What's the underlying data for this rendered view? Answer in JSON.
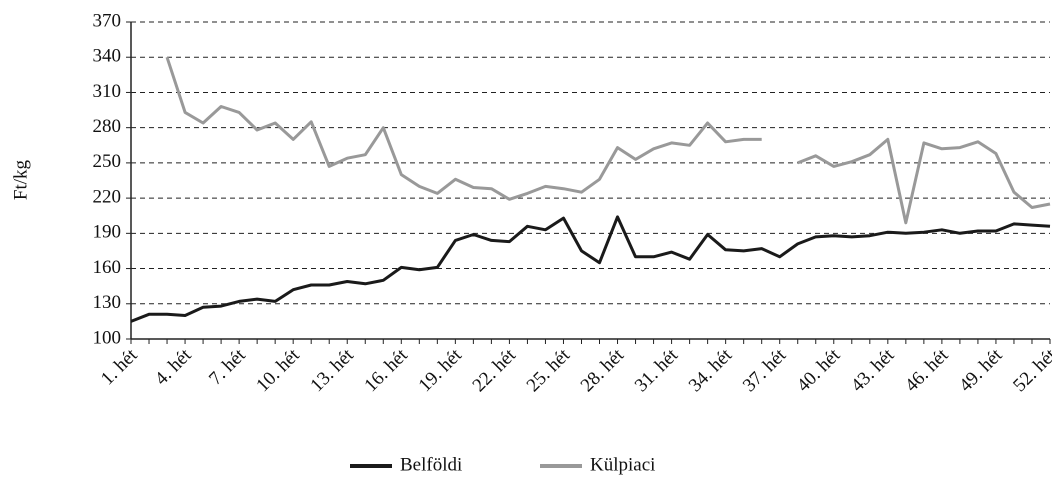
{
  "chart_data": {
    "type": "line",
    "ylabel": "Ft/kg",
    "categories": [
      "1. hét",
      null,
      null,
      "4. hét",
      null,
      null,
      "7. hét",
      null,
      null,
      "10. hét",
      null,
      null,
      "13. hét",
      null,
      null,
      "16. hét",
      null,
      null,
      "19. hét",
      null,
      null,
      "22. hét",
      null,
      null,
      "25. hét",
      null,
      null,
      "28. hét",
      null,
      null,
      "31. hét",
      null,
      null,
      "34. hét",
      null,
      null,
      "37. hét",
      null,
      null,
      "40. hét",
      null,
      null,
      "43. hét",
      null,
      null,
      "46. hét",
      null,
      null,
      "49. hét",
      null,
      null,
      "52. hét"
    ],
    "series": [
      {
        "name": "Belföldi",
        "color": "#1a1a1a",
        "values": [
          115,
          121,
          121,
          120,
          127,
          128,
          132,
          134,
          132,
          142,
          146,
          146,
          149,
          147,
          150,
          161,
          159,
          161,
          184,
          189,
          184,
          183,
          196,
          193,
          203,
          175,
          165,
          204,
          170,
          170,
          174,
          168,
          189,
          176,
          175,
          177,
          170,
          181,
          187,
          188,
          187,
          188,
          191,
          190,
          191,
          193,
          190,
          192,
          192,
          198,
          197,
          196
        ]
      },
      {
        "name": "Külpiaci",
        "color": "#999999",
        "values": [
          null,
          null,
          340,
          293,
          284,
          298,
          293,
          278,
          284,
          270,
          285,
          247,
          254,
          257,
          280,
          240,
          230,
          224,
          236,
          229,
          228,
          219,
          224,
          230,
          228,
          225,
          236,
          263,
          253,
          262,
          267,
          265,
          284,
          268,
          270,
          270,
          null,
          250,
          256,
          247,
          251,
          257,
          270,
          199,
          267,
          262,
          263,
          268,
          258,
          225,
          212,
          215
        ]
      }
    ],
    "ylim": [
      100,
      370
    ],
    "yticks": [
      100,
      130,
      160,
      190,
      220,
      250,
      280,
      310,
      340,
      370
    ],
    "grid": true,
    "legend": "bottom"
  }
}
